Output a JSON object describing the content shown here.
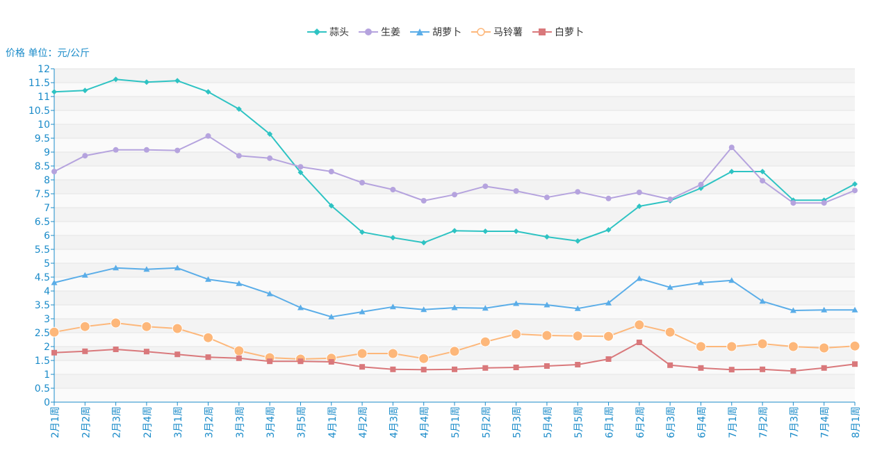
{
  "chart_data": {
    "type": "line",
    "ylabel": "价格 单位：元/公斤",
    "ylim": [
      0,
      12
    ],
    "ytick_step": 0.5,
    "categories": [
      "2月1周",
      "2月2周",
      "2月3周",
      "2月4周",
      "3月1周",
      "3月2周",
      "3月3周",
      "3月4周",
      "3月5周",
      "4月1周",
      "4月2周",
      "4月3周",
      "4月4周",
      "5月1周",
      "5月2周",
      "5月3周",
      "5月4周",
      "5月5周",
      "6月1周",
      "6月2周",
      "6月3周",
      "6月4周",
      "7月1周",
      "7月2周",
      "7月3周",
      "7月4周",
      "8月1周"
    ],
    "series": [
      {
        "name": "蒜头",
        "color": "#2ec3c3",
        "marker": "diamond",
        "values": [
          11.17,
          11.22,
          11.62,
          11.52,
          11.57,
          11.17,
          10.55,
          9.65,
          8.27,
          7.07,
          6.12,
          5.92,
          5.74,
          6.17,
          6.15,
          6.15,
          5.95,
          5.8,
          6.2,
          7.05,
          7.25,
          7.7,
          8.3,
          8.3,
          7.27,
          7.27,
          7.85
        ]
      },
      {
        "name": "生姜",
        "color": "#b5a3de",
        "marker": "circle",
        "values": [
          8.3,
          8.87,
          9.08,
          9.08,
          9.06,
          9.58,
          8.87,
          8.78,
          8.47,
          8.3,
          7.9,
          7.65,
          7.25,
          7.47,
          7.77,
          7.6,
          7.37,
          7.57,
          7.33,
          7.55,
          7.3,
          7.83,
          9.17,
          7.97,
          7.17,
          7.17,
          7.62
        ]
      },
      {
        "name": "胡萝卜",
        "color": "#5aade8",
        "marker": "triangle",
        "values": [
          4.3,
          4.57,
          4.83,
          4.78,
          4.83,
          4.42,
          4.27,
          3.9,
          3.4,
          3.07,
          3.25,
          3.43,
          3.33,
          3.4,
          3.38,
          3.55,
          3.5,
          3.37,
          3.57,
          4.45,
          4.13,
          4.3,
          4.38,
          3.63,
          3.3,
          3.32,
          3.32
        ]
      },
      {
        "name": "马铃薯",
        "color": "#fdb77a",
        "marker": "hollow-circle",
        "values": [
          2.52,
          2.72,
          2.85,
          2.72,
          2.65,
          2.32,
          1.85,
          1.6,
          1.55,
          1.58,
          1.75,
          1.75,
          1.57,
          1.83,
          2.17,
          2.45,
          2.4,
          2.38,
          2.37,
          2.78,
          2.52,
          2.0,
          2.0,
          2.1,
          2.0,
          1.95,
          2.02
        ]
      },
      {
        "name": "白萝卜",
        "color": "#d9787b",
        "marker": "square",
        "values": [
          1.78,
          1.83,
          1.9,
          1.82,
          1.72,
          1.62,
          1.58,
          1.47,
          1.47,
          1.45,
          1.27,
          1.18,
          1.17,
          1.18,
          1.23,
          1.25,
          1.3,
          1.35,
          1.55,
          2.15,
          1.33,
          1.23,
          1.17,
          1.18,
          1.12,
          1.23,
          1.37
        ]
      }
    ]
  }
}
